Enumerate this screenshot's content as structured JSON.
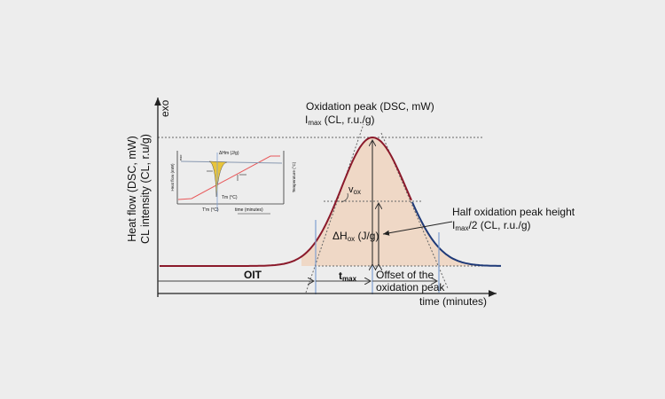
{
  "axes": {
    "y_label_1": "Heat flow (DSC, mW)",
    "y_label_2": "CL intensity (CL, r.u/g)",
    "y_top": "exo",
    "x_label": "time (minutes)"
  },
  "annotations": {
    "peak_line1": "Oxidation peak (DSC, mW)",
    "peak_line2_main": "I",
    "peak_line2_sub": "max",
    "peak_line2_rest": " (CL, r.u./g)",
    "vox_main": "v",
    "vox_sub": "ox",
    "dh_main": "ΔH",
    "dh_sub": "ox",
    "dh_rest": " (J/g)",
    "half_line1": "Half oxidation peak height",
    "half_line2_main": "I",
    "half_line2_sub": "max",
    "half_line2_rest": "/2 (CL, r.u./g)",
    "oit": "OIT",
    "tmax_main": "t",
    "tmax_sub": "max",
    "offset_line1": "Offset of the",
    "offset_line2": "oxidation peak"
  },
  "inset": {
    "y_label": "Heat flow (mW)",
    "y_top": "exo",
    "y2_label": "Temperature (°C)",
    "x_label": "time (minutes)",
    "dhm": "ΔHm (J/g)",
    "tm": "Tm (°C)",
    "tm_onset": "T'm (°C)"
  },
  "colors": {
    "background": "#ededed",
    "curve_rise": "#8b1a2b",
    "curve_fall": "#1f3a78",
    "fill": "#efd8c6",
    "marker_lines": "#7f9fd0",
    "inset_temperature": "#e8585a",
    "inset_peak": "#e8c43a"
  }
}
